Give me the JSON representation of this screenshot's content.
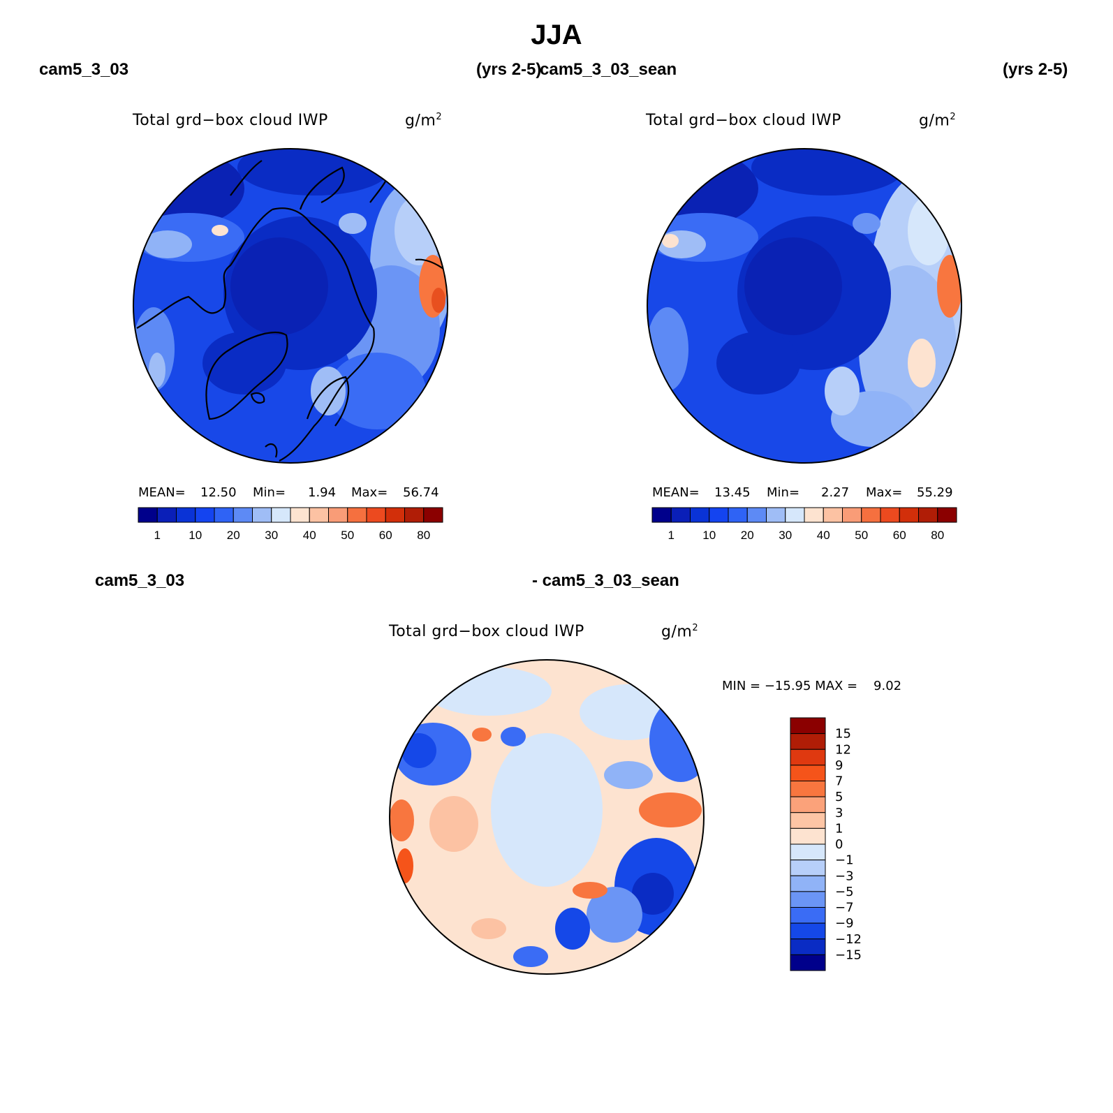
{
  "title": "JJA",
  "panel1": {
    "case_left": "cam5_3_03",
    "case_right": "(yrs 2-5)",
    "field": "Total grd−box cloud IWP",
    "units": "g/m",
    "units_exp": "2",
    "mean_label": "MEAN=",
    "mean": "12.50",
    "min_label": "Min=",
    "min": "1.94",
    "max_label": "Max=",
    "max": "56.74"
  },
  "panel2": {
    "case_left": "cam5_3_03_sean",
    "case_right": "(yrs 2-5)",
    "field": "Total grd−box cloud IWP",
    "units": "g/m",
    "units_exp": "2",
    "mean_label": "MEAN=",
    "mean": "13.45",
    "min_label": "Min=",
    "min": "2.27",
    "max_label": "Max=",
    "max": "55.29"
  },
  "panel3": {
    "case_left": "cam5_3_03",
    "case_right": "- cam5_3_03_sean",
    "field": "Total grd−box cloud IWP",
    "units": "g/m",
    "units_exp": "2",
    "minmax_text": "MIN = −15.95 MAX =    9.02"
  },
  "abs_colorbar": {
    "ticks": [
      "1",
      "10",
      "20",
      "30",
      "40",
      "50",
      "60",
      "80"
    ],
    "colors": [
      "#00008b",
      "#0a1fb8",
      "#0a33d6",
      "#1444f0",
      "#2f63f5",
      "#5d8af5",
      "#9fbdf6",
      "#d6e7fb",
      "#fde3d0",
      "#fcc2a3",
      "#f99c77",
      "#f5703f",
      "#ec4a1f",
      "#d22f0a",
      "#b01d06",
      "#8b0000"
    ]
  },
  "diff_colorbar": {
    "ticks": [
      "15",
      "12",
      "9",
      "7",
      "5",
      "3",
      "1",
      "0",
      "−1",
      "−3",
      "−5",
      "−7",
      "−9",
      "−12",
      "−15"
    ],
    "colors": [
      "#8b0000",
      "#b01d06",
      "#df3910",
      "#f5541a",
      "#f8763f",
      "#fba27a",
      "#fdc5a5",
      "#fde3d0",
      "#d6e7fb",
      "#b7cff9",
      "#90b3f7",
      "#6b95f5",
      "#3a6cf5",
      "#1548e8",
      "#0a2cc4",
      "#00008b"
    ]
  },
  "color_scheme": {
    "cold_fill": "#1a44e6",
    "deep_fill": "#0a22b4",
    "coast": "#000000"
  }
}
